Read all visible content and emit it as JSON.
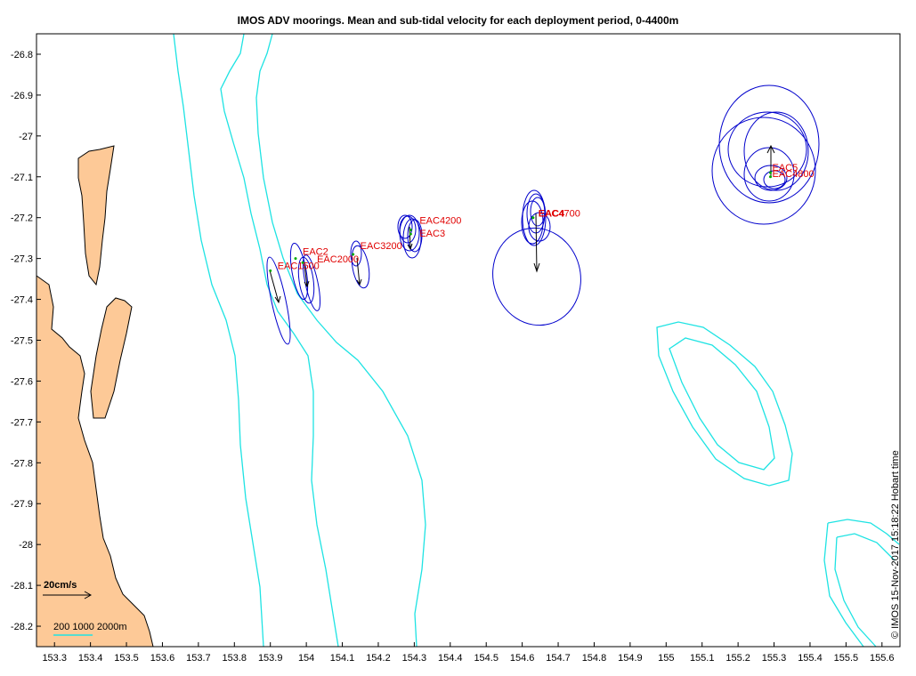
{
  "title": "IMOS ADV moorings. Mean and sub-tidal velocity for each deployment period, 0-4400m",
  "timestamp_note": "© IMOS 15-Nov-2017 15:18:22 Hobart time",
  "scale_arrow_label": "20cm/s",
  "isobath_legend_label": "200 1000 2000m",
  "axes": {
    "lon_range": [
      153.25,
      155.65
    ],
    "lat_range": [
      -28.25,
      -26.75
    ],
    "lon_ticks": [
      "153.3",
      "153.4",
      "153.5",
      "153.6",
      "153.7",
      "153.8",
      "153.9",
      "154",
      "154.1",
      "154.2",
      "154.3",
      "154.4",
      "154.5",
      "154.6",
      "154.7",
      "154.8",
      "154.9",
      "155",
      "155.1",
      "155.2",
      "155.3",
      "155.4",
      "155.5",
      "155.6"
    ],
    "lat_ticks": [
      "-26.8",
      "-26.9",
      "-27",
      "-27.1",
      "-27.2",
      "-27.3",
      "-27.4",
      "-27.5",
      "-27.6",
      "-27.7",
      "-27.8",
      "-27.9",
      "-28",
      "-28.1",
      "-28.2"
    ]
  },
  "colors": {
    "land": "#fdc997",
    "isobath": "#1ee3e3",
    "ellipse": "#0000cc",
    "label": "#e00000",
    "axis": "#000000"
  },
  "moorings": [
    {
      "name": "EAC1500",
      "lon": 153.9,
      "lat": -27.33
    },
    {
      "name": "EAC2",
      "lon": 153.97,
      "lat": -27.3
    },
    {
      "name": "EAC2000",
      "lon": 153.99,
      "lat": -27.31
    },
    {
      "name": "EAC3200",
      "lon": 154.13,
      "lat": -27.29
    },
    {
      "name": "EAC4200",
      "lon": 154.29,
      "lat": -27.23
    },
    {
      "name": "EAC3",
      "lon": 154.29,
      "lat": -27.24
    },
    {
      "name": "EAC4",
      "lon": 154.63,
      "lat": -27.2,
      "bold": true
    },
    {
      "name": "EAC4700",
      "lon": 154.63,
      "lat": -27.2
    },
    {
      "name": "EAC5",
      "lon": 155.29,
      "lat": -27.09
    },
    {
      "name": "EAC4800",
      "lon": 155.29,
      "lat": -27.1
    }
  ]
}
